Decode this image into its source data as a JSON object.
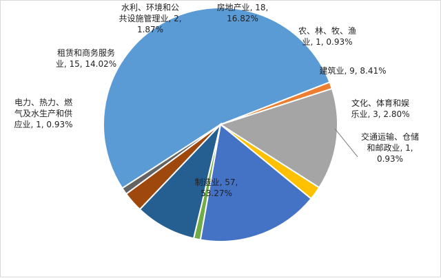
{
  "chart_data": {
    "type": "pie",
    "title": "",
    "start_category": "制造业",
    "slices": [
      {
        "category": "制造业",
        "value": 57,
        "percent": "53.27%",
        "color": "#5b9bd5",
        "label_lines": [
          "制造业, 57,",
          "53.27%"
        ]
      },
      {
        "category": "电力、热力、燃气及水生产和供应业",
        "value": 1,
        "percent": "0.93%",
        "color": "#ed7d31",
        "label_lines": [
          "电力、热力、燃",
          "气及水生产和供",
          "应业, 1, 0.93%"
        ]
      },
      {
        "category": "租赁和商务服务业",
        "value": 15,
        "percent": "14.02%",
        "color": "#a5a5a5",
        "label_lines": [
          "租赁和商务服务",
          "业, 15, 14.02%"
        ]
      },
      {
        "category": "水利、环境和公共设施管理业",
        "value": 2,
        "percent": "1.87%",
        "color": "#ffc000",
        "label_lines": [
          "水利、环境和公",
          "共设施管理业, 2,",
          "1.87%"
        ]
      },
      {
        "category": "房地产业",
        "value": 18,
        "percent": "16.82%",
        "color": "#4472c4",
        "label_lines": [
          "房地产业, 18,",
          "16.82%"
        ]
      },
      {
        "category": "农、林、牧、渔业",
        "value": 1,
        "percent": "0.93%",
        "color": "#70ad47",
        "label_lines": [
          "农、林、牧、渔",
          "业, 1, 0.93%"
        ]
      },
      {
        "category": "建筑业",
        "value": 9,
        "percent": "8.41%",
        "color": "#255e91",
        "label_lines": [
          "建筑业, 9, 8.41%"
        ]
      },
      {
        "category": "文化、体育和娱乐业",
        "value": 3,
        "percent": "2.80%",
        "color": "#9e480e",
        "label_lines": [
          "文化、体育和娱",
          "乐业, 3, 2.80%"
        ]
      },
      {
        "category": "交通运输、仓储和邮政业",
        "value": 1,
        "percent": "0.93%",
        "color": "#636363",
        "label_lines": [
          "交通运输、仓储",
          "和邮政业, 1,",
          "0.93%"
        ]
      }
    ]
  }
}
